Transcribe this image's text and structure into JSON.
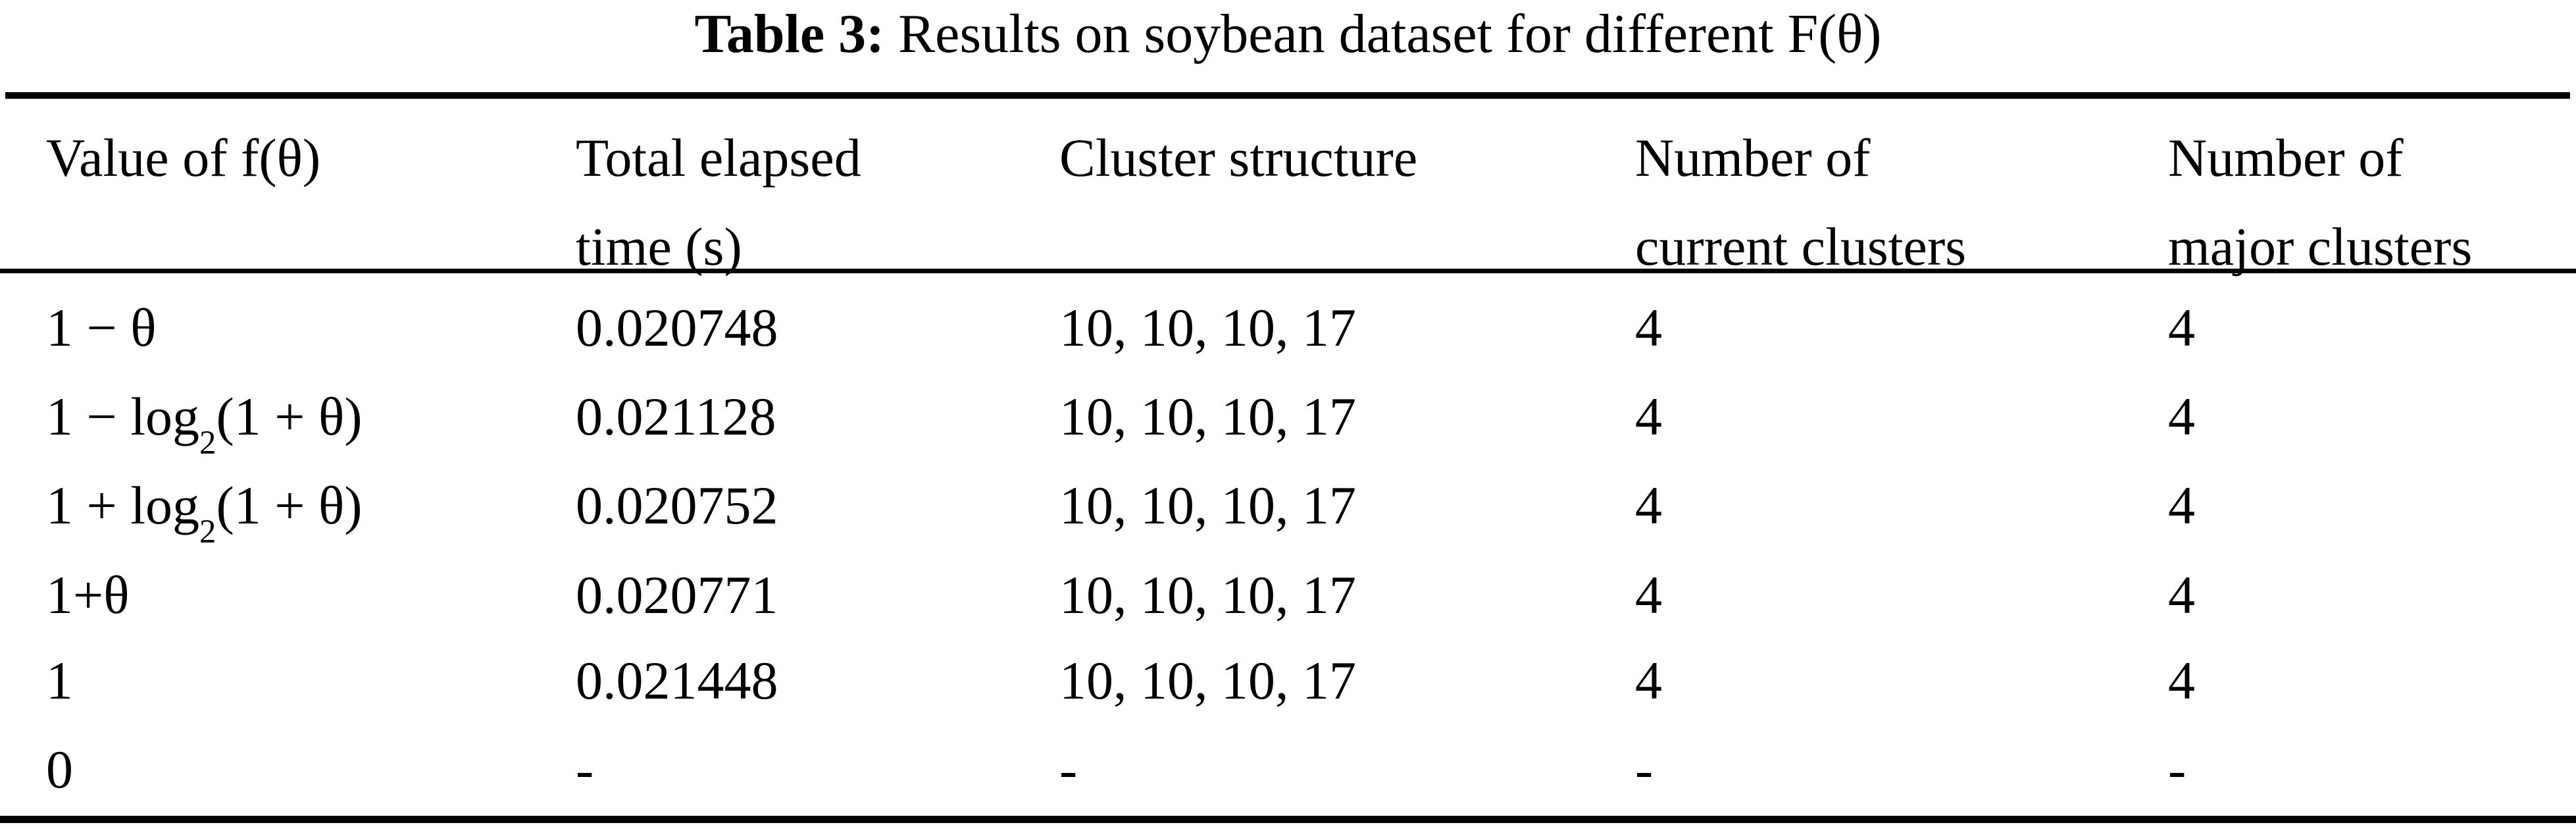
{
  "title": {
    "label": "Table 3:",
    "text": " Results on soybean dataset for different F(θ)"
  },
  "table": {
    "headers": [
      {
        "line1": "Value of f(θ)",
        "line2": ""
      },
      {
        "line1": "Total elapsed",
        "line2": "time (s)"
      },
      {
        "line1": "Cluster structure",
        "line2": ""
      },
      {
        "line1": "Number of",
        "line2": "current clusters"
      },
      {
        "line1": "Number of",
        "line2": "major clusters"
      }
    ],
    "rows": [
      {
        "f": {
          "base": "1 − θ",
          "sub": "",
          "rest": ""
        },
        "time": "0.020748",
        "structure": "10, 10, 10, 17",
        "current": "4",
        "major": "4"
      },
      {
        "f": {
          "base": "1 − log",
          "sub": "2",
          "rest": "(1 + θ)"
        },
        "time": "0.021128",
        "structure": "10, 10, 10, 17",
        "current": "4",
        "major": "4"
      },
      {
        "f": {
          "base": "1 + log",
          "sub": "2",
          "rest": "(1 + θ)"
        },
        "time": "0.020752",
        "structure": "10, 10, 10, 17",
        "current": "4",
        "major": "4"
      },
      {
        "f": {
          "base": "1+θ",
          "sub": "",
          "rest": ""
        },
        "time": "0.020771",
        "structure": "10, 10, 10, 17",
        "current": "4",
        "major": "4"
      },
      {
        "f": {
          "base": "1",
          "sub": "",
          "rest": ""
        },
        "time": "0.021448",
        "structure": "10, 10, 10, 17",
        "current": "4",
        "major": "4"
      },
      {
        "f": {
          "base": "0",
          "sub": "",
          "rest": ""
        },
        "time": "-",
        "structure": "-",
        "current": "-",
        "major": "-"
      }
    ]
  }
}
